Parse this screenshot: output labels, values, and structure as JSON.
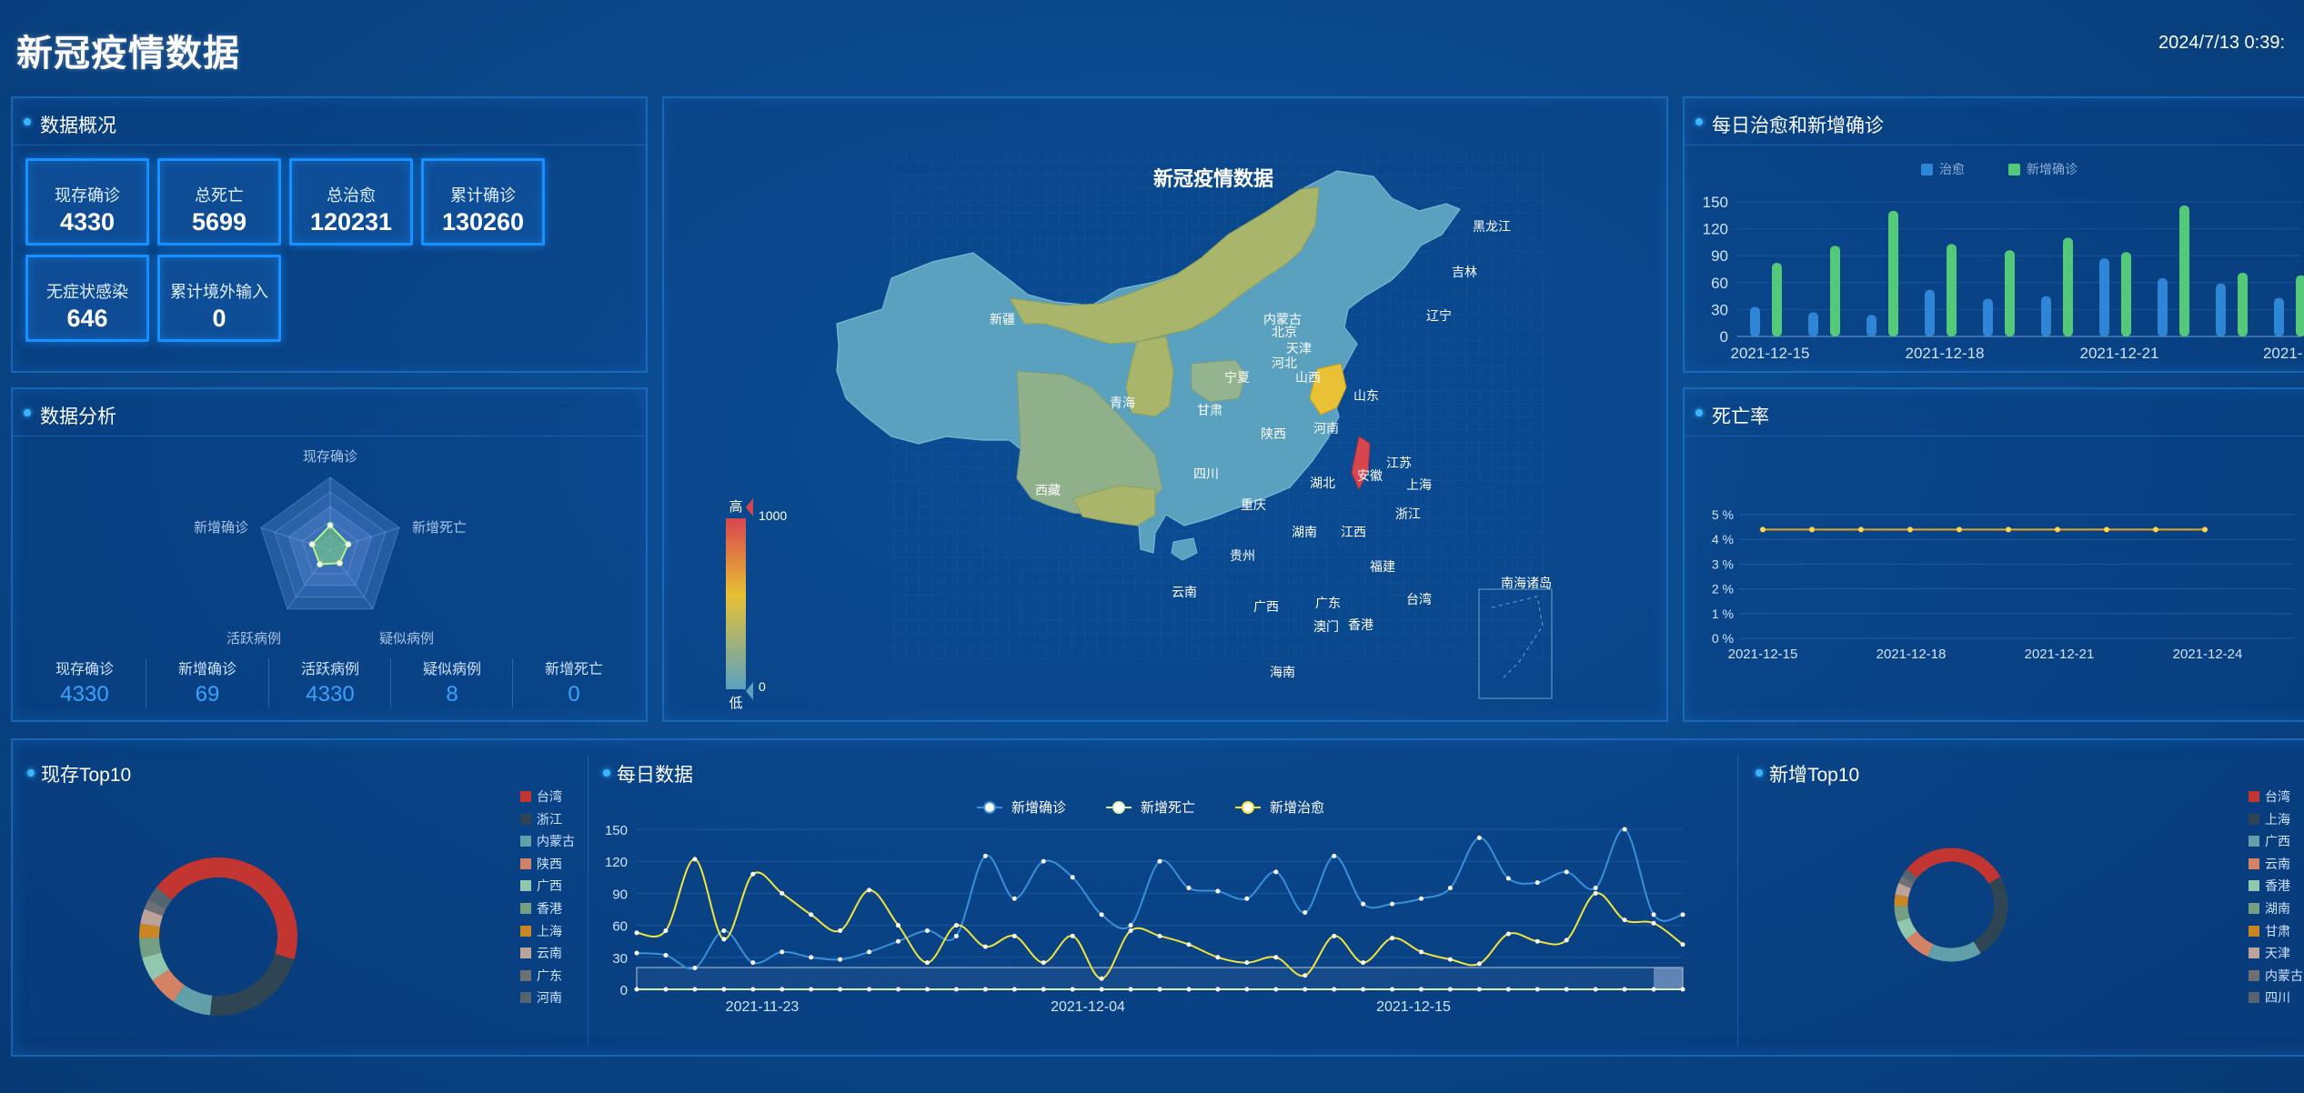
{
  "header": {
    "title": "新冠疫情数据",
    "time": "2024/7/13 0:39:"
  },
  "overview": {
    "title": "数据概况",
    "cards": [
      {
        "label": "现存确诊",
        "value": "4330"
      },
      {
        "label": "总死亡",
        "value": "5699"
      },
      {
        "label": "总治愈",
        "value": "120231"
      },
      {
        "label": "累计确诊",
        "value": "130260"
      },
      {
        "label": "无症状感染",
        "value": "646"
      },
      {
        "label": "累计境外输入",
        "value": "0"
      }
    ]
  },
  "analysis": {
    "title": "数据分析",
    "radar_labels": [
      "现存确诊",
      "新增死亡",
      "疑似病例",
      "活跃病例",
      "新增确诊"
    ],
    "items": [
      {
        "label": "现存确诊",
        "value": "4330"
      },
      {
        "label": "新增确诊",
        "value": "69"
      },
      {
        "label": "活跃病例",
        "value": "4330"
      },
      {
        "label": "疑似病例",
        "value": "8"
      },
      {
        "label": "新增死亡",
        "value": "0"
      }
    ]
  },
  "map": {
    "title": "新冠疫情数据",
    "scale_high": "高",
    "scale_low": "低",
    "scale_max": "1000",
    "scale_min": "0",
    "colors": {
      "base": "#5aa1bf",
      "mid": "#a9b56a",
      "hot": "#e8c134",
      "max": "#d9454f"
    },
    "labels": [
      "黑龙江",
      "吉林",
      "辽宁",
      "内蒙古",
      "北京",
      "天津",
      "河北",
      "新疆",
      "宁夏",
      "山西",
      "山东",
      "青海",
      "甘肃",
      "陕西",
      "河南",
      "西藏",
      "四川",
      "湖北",
      "安徽",
      "江苏",
      "上海",
      "重庆",
      "浙江",
      "湖南",
      "江西",
      "贵州",
      "福建",
      "台湾",
      "云南",
      "广西",
      "广东",
      "澳门",
      "香港",
      "海南",
      "南海诸岛"
    ]
  },
  "daily_bar": {
    "title": "每日治愈和新增确诊",
    "legend": [
      "治愈",
      "新增确诊"
    ],
    "colors": [
      "#2f86d6",
      "#55c97a"
    ]
  },
  "death_rate": {
    "title": "死亡率"
  },
  "top10_current": {
    "title": "现存Top10",
    "legend": [
      "台湾",
      "浙江",
      "内蒙古",
      "陕西",
      "广西",
      "香港",
      "上海",
      "云南",
      "广东",
      "河南"
    ],
    "colors": [
      "#c23531",
      "#2f4554",
      "#61a0a8",
      "#d48265",
      "#91c7ae",
      "#749f83",
      "#ca8622",
      "#bda29a",
      "#6e7074",
      "#546570"
    ]
  },
  "daily_data": {
    "title": "每日数据",
    "legend": [
      "新增确诊",
      "新增死亡",
      "新增治愈"
    ],
    "colors": [
      "#3a8fd9",
      "#d8f0b0",
      "#f1e43a"
    ]
  },
  "top10_new": {
    "title": "新增Top10",
    "legend": [
      "台湾",
      "上海",
      "广西",
      "云南",
      "香港",
      "湖南",
      "甘肃",
      "天津",
      "内蒙古",
      "四川"
    ],
    "colors": [
      "#c23531",
      "#2f4554",
      "#61a0a8",
      "#d48265",
      "#91c7ae",
      "#749f83",
      "#ca8622",
      "#bda29a",
      "#6e7074",
      "#546570"
    ]
  },
  "chart_data": [
    {
      "type": "radar",
      "indicators": [
        "现存确诊",
        "新增死亡",
        "疑似病例",
        "活跃病例",
        "新增确诊"
      ],
      "values": [
        0.34,
        0.26,
        0.22,
        0.24,
        0.26
      ]
    },
    {
      "type": "bar",
      "title": "每日治愈和新增确诊",
      "x": [
        "2021-12-15",
        "2021-12-16",
        "2021-12-17",
        "2021-12-18",
        "2021-12-19",
        "2021-12-20",
        "2021-12-21",
        "2021-12-22",
        "2021-12-23",
        "2021-12-24"
      ],
      "x_tick_labels": [
        "2021-12-15",
        "2021-12-18",
        "2021-12-21",
        "2021-12-"
      ],
      "ylim": [
        0,
        150
      ],
      "yticks": [
        0,
        30,
        60,
        90,
        120,
        150
      ],
      "series": [
        {
          "name": "治愈",
          "values": [
            33,
            27,
            24,
            52,
            42,
            45,
            87,
            65,
            59,
            43
          ]
        },
        {
          "name": "新增确诊",
          "values": [
            82,
            101,
            140,
            103,
            96,
            110,
            94,
            146,
            71,
            68
          ]
        }
      ]
    },
    {
      "type": "line",
      "title": "死亡率",
      "x_tick_labels": [
        "2021-12-15",
        "2021-12-18",
        "2021-12-21",
        "2021-12-24"
      ],
      "ylim": [
        0,
        5
      ],
      "ytick_labels": [
        "0 %",
        "1 %",
        "2 %",
        "3 %",
        "4 %",
        "5 %"
      ],
      "values": [
        4.4,
        4.4,
        4.4,
        4.4,
        4.4,
        4.4,
        4.4,
        4.4,
        4.4,
        4.4
      ]
    },
    {
      "type": "pie",
      "title": "现存Top10",
      "labels": [
        "台湾",
        "浙江",
        "内蒙古",
        "陕西",
        "广西",
        "香港",
        "上海",
        "云南",
        "广东",
        "河南"
      ],
      "values": [
        44,
        22,
        8,
        6,
        5,
        4,
        3,
        3,
        2,
        3
      ]
    },
    {
      "type": "line",
      "title": "每日数据",
      "x_tick_labels": [
        "2021-11-23",
        "2021-12-04",
        "2021-12-15"
      ],
      "ylim": [
        0,
        150
      ],
      "yticks": [
        0,
        30,
        60,
        90,
        120,
        150
      ],
      "series": [
        {
          "name": "新增确诊",
          "values": [
            34,
            32,
            20,
            55,
            25,
            35,
            30,
            28,
            35,
            45,
            55,
            50,
            125,
            85,
            120,
            105,
            70,
            60,
            120,
            95,
            92,
            85,
            110,
            72,
            125,
            80,
            80,
            85,
            95,
            142,
            104,
            100,
            110,
            95,
            150,
            70,
            70
          ]
        },
        {
          "name": "新增死亡",
          "values": [
            0,
            0,
            0,
            0,
            0,
            0,
            0,
            0,
            0,
            0,
            0,
            0,
            0,
            0,
            0,
            0,
            0,
            0,
            0,
            0,
            0,
            0,
            0,
            0,
            0,
            0,
            0,
            0,
            0,
            0,
            0,
            0,
            0,
            0,
            0,
            0,
            0
          ]
        },
        {
          "name": "新增治愈",
          "values": [
            53,
            55,
            122,
            47,
            108,
            90,
            70,
            55,
            93,
            60,
            25,
            60,
            40,
            50,
            25,
            50,
            10,
            55,
            50,
            42,
            30,
            25,
            30,
            13,
            50,
            25,
            48,
            35,
            28,
            24,
            52,
            45,
            46,
            90,
            65,
            62,
            42
          ]
        }
      ]
    },
    {
      "type": "pie",
      "title": "新增Top10",
      "labels": [
        "台湾",
        "上海",
        "广西",
        "云南",
        "香港",
        "湖南",
        "甘肃",
        "天津",
        "内蒙古",
        "四川"
      ],
      "values": [
        28,
        22,
        14,
        7,
        5,
        4,
        3,
        3,
        2,
        2
      ]
    }
  ]
}
